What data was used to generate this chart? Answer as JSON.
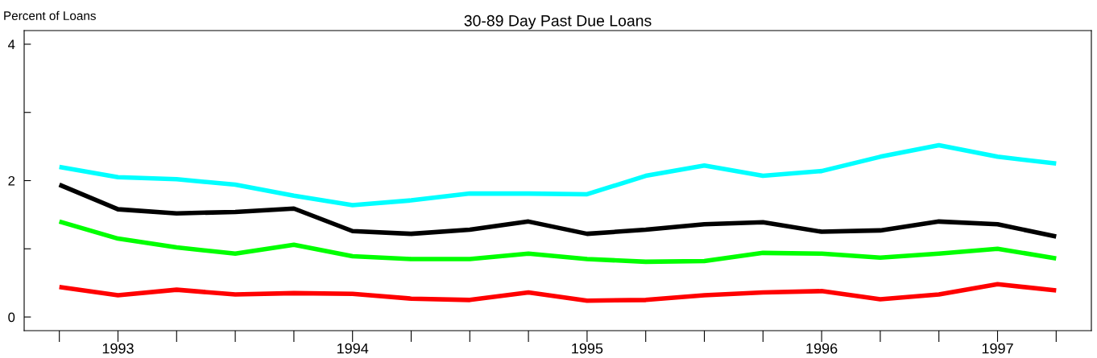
{
  "chart_data": {
    "type": "line",
    "title": "30-89 Day Past Due Loans",
    "ylabel": "Percent of Loans",
    "categories": [
      null,
      "1993",
      null,
      null,
      null,
      "1994",
      null,
      null,
      null,
      "1995",
      null,
      null,
      null,
      "1996",
      null,
      null,
      "1997",
      null
    ],
    "series": [
      {
        "color": "#00ffff",
        "values": [
          2.2,
          2.05,
          2.02,
          1.94,
          1.78,
          1.64,
          1.71,
          1.81,
          1.81,
          1.8,
          2.07,
          2.22,
          2.07,
          2.14,
          2.35,
          2.52,
          2.35,
          2.25
        ]
      },
      {
        "color": "#000000",
        "values": [
          1.94,
          1.58,
          1.52,
          1.54,
          1.59,
          1.26,
          1.22,
          1.28,
          1.4,
          1.22,
          1.28,
          1.36,
          1.39,
          1.25,
          1.27,
          1.4,
          1.36,
          1.18
        ]
      },
      {
        "color": "#00ff00",
        "values": [
          1.4,
          1.15,
          1.02,
          0.93,
          1.06,
          0.89,
          0.85,
          0.85,
          0.93,
          0.85,
          0.81,
          0.82,
          0.94,
          0.93,
          0.87,
          0.93,
          1.0,
          0.86
        ]
      },
      {
        "color": "#ff0000",
        "values": [
          0.44,
          0.32,
          0.4,
          0.33,
          0.35,
          0.34,
          0.27,
          0.25,
          0.36,
          0.24,
          0.25,
          0.32,
          0.36,
          0.38,
          0.26,
          0.33,
          0.48,
          0.39
        ]
      }
    ],
    "ylim": [
      -0.2,
      4.2
    ],
    "yticks": [
      0,
      {
        "value": 1,
        "label": null
      },
      2,
      {
        "value": 3,
        "label": null
      },
      4
    ],
    "grid": false,
    "legend": false,
    "marker": "none",
    "line_style": "solid"
  }
}
